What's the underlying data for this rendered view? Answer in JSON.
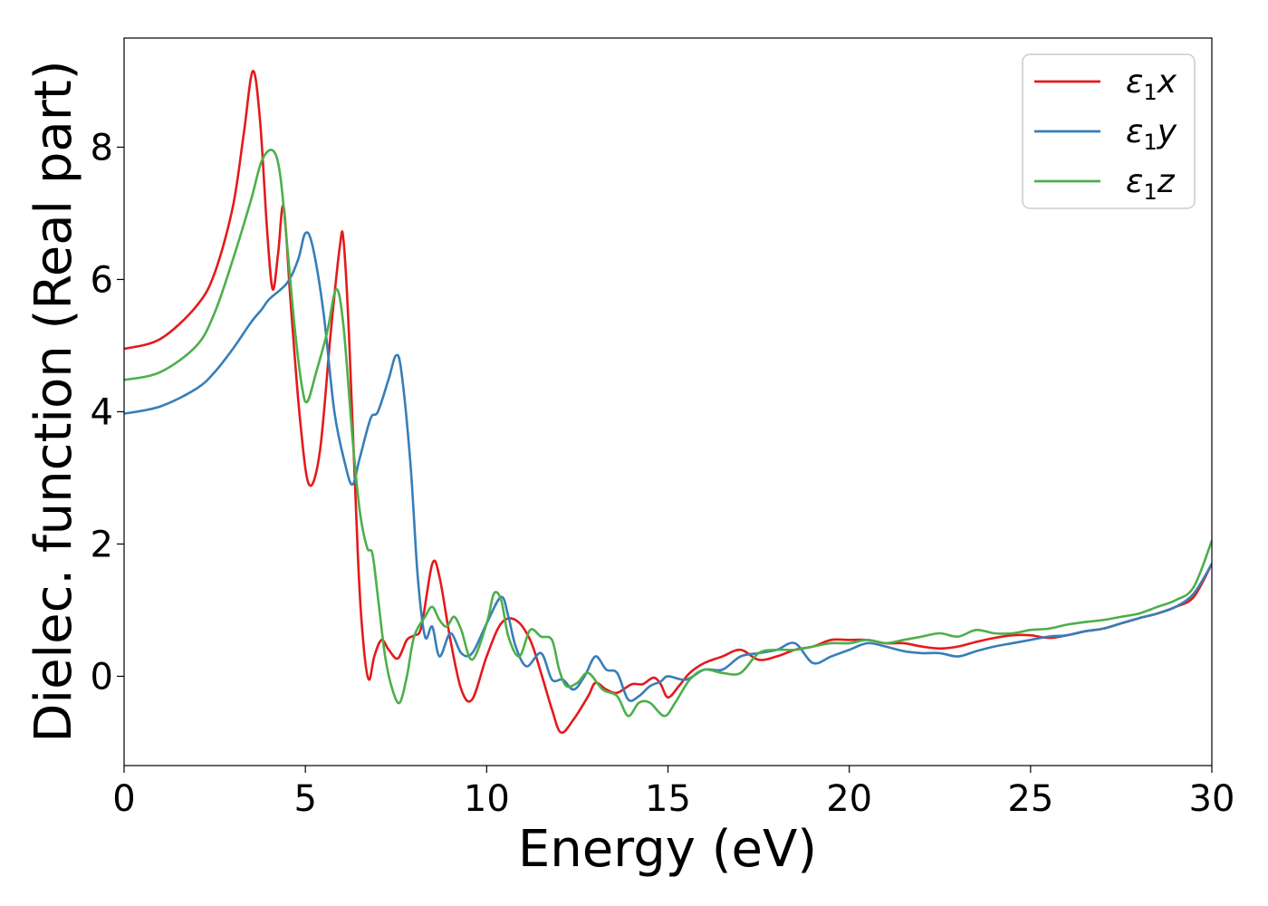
{
  "chart_data": {
    "type": "line",
    "title": "",
    "xlabel": "Energy (eV)",
    "ylabel": "Dielec. function (Real part)",
    "xlim": [
      0,
      30
    ],
    "ylim": [
      -1.35,
      9.65
    ],
    "xticks": [
      0,
      5,
      10,
      15,
      20,
      25,
      30
    ],
    "yticks": [
      0,
      2,
      4,
      6,
      8
    ],
    "grid": false,
    "legend_position": "top-right",
    "series": [
      {
        "name": "ε1x",
        "legend_base": "ε",
        "legend_sub": "1",
        "legend_suffix": "x",
        "color": "#e41a1c",
        "x": [
          0,
          1,
          2,
          2.5,
          3,
          3.3,
          3.55,
          3.75,
          3.95,
          4.1,
          4.25,
          4.4,
          4.6,
          4.85,
          5.1,
          5.4,
          5.7,
          5.95,
          6.05,
          6.2,
          6.45,
          6.6,
          6.75,
          6.9,
          7.1,
          7.3,
          7.55,
          7.8,
          8.0,
          8.2,
          8.5,
          8.7,
          9.0,
          9.3,
          9.6,
          10.0,
          10.4,
          10.8,
          11.2,
          11.5,
          11.8,
          12.05,
          12.4,
          12.8,
          13.0,
          13.3,
          13.6,
          14.0,
          14.3,
          14.6,
          14.8,
          15.0,
          15.3,
          15.6,
          16.0,
          16.5,
          17.0,
          17.5,
          18.0,
          18.5,
          19.0,
          19.5,
          20.0,
          20.5,
          21.0,
          21.5,
          22.0,
          22.5,
          23.0,
          23.5,
          24.0,
          24.5,
          25.0,
          25.5,
          26.0,
          26.5,
          27.0,
          27.5,
          28.0,
          28.5,
          29.0,
          29.5,
          30.0
        ],
        "y": [
          4.95,
          5.1,
          5.6,
          6.1,
          7.1,
          8.2,
          9.15,
          8.4,
          6.7,
          5.85,
          6.4,
          7.1,
          5.6,
          3.9,
          2.9,
          3.4,
          5.2,
          6.5,
          6.6,
          5.2,
          1.8,
          0.5,
          -0.05,
          0.3,
          0.55,
          0.4,
          0.27,
          0.55,
          0.62,
          0.75,
          1.7,
          1.5,
          0.55,
          -0.2,
          -0.35,
          0.3,
          0.8,
          0.85,
          0.55,
          0.05,
          -0.5,
          -0.85,
          -0.65,
          -0.3,
          -0.1,
          -0.2,
          -0.25,
          -0.12,
          -0.12,
          -0.02,
          -0.12,
          -0.32,
          -0.15,
          0.05,
          0.2,
          0.3,
          0.4,
          0.25,
          0.3,
          0.4,
          0.45,
          0.55,
          0.55,
          0.55,
          0.5,
          0.5,
          0.45,
          0.42,
          0.45,
          0.52,
          0.58,
          0.62,
          0.62,
          0.58,
          0.62,
          0.68,
          0.72,
          0.8,
          0.88,
          0.95,
          1.05,
          1.2,
          1.7
        ]
      },
      {
        "name": "ε1y",
        "legend_base": "ε",
        "legend_sub": "1",
        "legend_suffix": "y",
        "color": "#377eb8",
        "x": [
          0,
          1,
          2,
          2.5,
          3,
          3.5,
          3.8,
          4.0,
          4.5,
          4.8,
          5.0,
          5.2,
          5.5,
          5.8,
          6.1,
          6.3,
          6.5,
          6.8,
          7.0,
          7.3,
          7.5,
          7.65,
          7.9,
          8.1,
          8.3,
          8.5,
          8.7,
          9.0,
          9.3,
          9.6,
          10.0,
          10.4,
          10.6,
          10.8,
          11.1,
          11.5,
          11.8,
          12.1,
          12.4,
          12.7,
          13.0,
          13.3,
          13.6,
          13.9,
          14.2,
          14.5,
          14.8,
          15.0,
          15.5,
          16.0,
          16.5,
          17.0,
          17.5,
          18.0,
          18.5,
          19.0,
          19.5,
          20.0,
          20.5,
          21.0,
          21.5,
          22.0,
          22.5,
          23.0,
          23.5,
          24.0,
          24.5,
          25.0,
          25.5,
          26.0,
          26.5,
          27.0,
          27.5,
          28.0,
          28.5,
          29.0,
          29.5,
          30.0
        ],
        "y": [
          3.97,
          4.08,
          4.35,
          4.6,
          4.95,
          5.35,
          5.55,
          5.7,
          5.95,
          6.3,
          6.7,
          6.5,
          5.5,
          4.0,
          3.2,
          2.9,
          3.3,
          3.9,
          4.0,
          4.5,
          4.85,
          4.6,
          3.2,
          1.5,
          0.6,
          0.75,
          0.3,
          0.65,
          0.35,
          0.35,
          0.8,
          1.2,
          0.9,
          0.45,
          0.15,
          0.35,
          -0.05,
          -0.05,
          -0.2,
          0.0,
          0.3,
          0.1,
          0.05,
          -0.35,
          -0.3,
          -0.15,
          -0.08,
          0.0,
          -0.05,
          0.1,
          0.1,
          0.3,
          0.35,
          0.4,
          0.5,
          0.2,
          0.3,
          0.4,
          0.5,
          0.45,
          0.38,
          0.35,
          0.35,
          0.3,
          0.38,
          0.45,
          0.5,
          0.55,
          0.6,
          0.62,
          0.68,
          0.72,
          0.8,
          0.88,
          0.95,
          1.05,
          1.25,
          1.7
        ]
      },
      {
        "name": "ε1z",
        "legend_base": "ε",
        "legend_sub": "1",
        "legend_suffix": "z",
        "color": "#4daf4a",
        "x": [
          0,
          1,
          2,
          2.5,
          3,
          3.5,
          3.8,
          4.1,
          4.3,
          4.5,
          4.7,
          4.9,
          5.05,
          5.3,
          5.6,
          5.85,
          6.05,
          6.3,
          6.5,
          6.7,
          6.85,
          7.0,
          7.2,
          7.4,
          7.6,
          7.8,
          8.0,
          8.3,
          8.5,
          8.7,
          8.9,
          9.1,
          9.3,
          9.6,
          10.0,
          10.2,
          10.4,
          10.6,
          10.9,
          11.2,
          11.5,
          11.8,
          12.0,
          12.2,
          12.5,
          12.8,
          13.2,
          13.6,
          13.9,
          14.2,
          14.5,
          14.9,
          15.2,
          15.6,
          16.0,
          16.5,
          17.0,
          17.5,
          18.0,
          18.5,
          19.0,
          19.5,
          20.0,
          20.5,
          21.0,
          21.5,
          22.0,
          22.5,
          23.0,
          23.5,
          24.0,
          24.5,
          25.0,
          25.5,
          26.0,
          26.5,
          27.0,
          27.5,
          28.0,
          28.5,
          29.0,
          29.5,
          30.0
        ],
        "y": [
          4.48,
          4.6,
          5.0,
          5.5,
          6.3,
          7.2,
          7.8,
          7.95,
          7.6,
          6.5,
          5.3,
          4.4,
          4.15,
          4.6,
          5.2,
          5.85,
          5.3,
          3.6,
          2.5,
          1.95,
          1.85,
          1.2,
          0.3,
          -0.2,
          -0.4,
          0.0,
          0.6,
          0.9,
          1.05,
          0.85,
          0.75,
          0.9,
          0.7,
          0.25,
          0.8,
          1.25,
          1.15,
          0.6,
          0.3,
          0.7,
          0.6,
          0.55,
          0.1,
          -0.15,
          -0.1,
          0.05,
          -0.2,
          -0.3,
          -0.6,
          -0.4,
          -0.4,
          -0.6,
          -0.4,
          -0.05,
          0.1,
          0.05,
          0.05,
          0.35,
          0.4,
          0.4,
          0.45,
          0.5,
          0.5,
          0.55,
          0.5,
          0.55,
          0.6,
          0.65,
          0.6,
          0.7,
          0.65,
          0.65,
          0.7,
          0.72,
          0.78,
          0.82,
          0.85,
          0.9,
          0.95,
          1.05,
          1.15,
          1.35,
          2.05
        ]
      }
    ]
  }
}
